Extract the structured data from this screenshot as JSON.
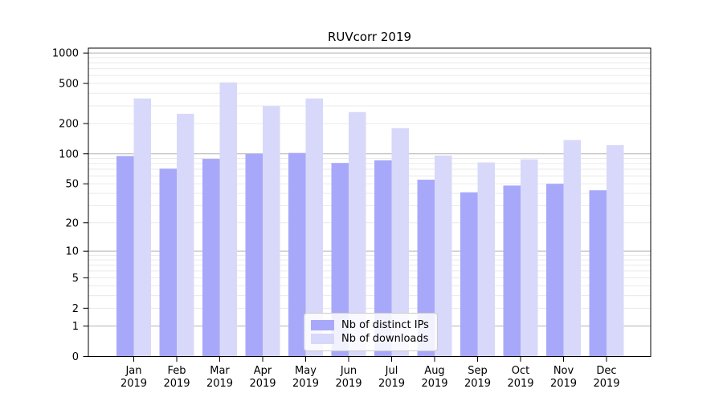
{
  "chart_data": {
    "type": "bar",
    "title": "RUVcorr 2019",
    "categories": [
      "Jan",
      "Feb",
      "Mar",
      "Apr",
      "May",
      "Jun",
      "Jul",
      "Aug",
      "Sep",
      "Oct",
      "Nov",
      "Dec"
    ],
    "category_year": "2019",
    "series": [
      {
        "name": "Nb of distinct IPs",
        "color": "#a8a8fa",
        "values": [
          95,
          71,
          89,
          100,
          102,
          81,
          86,
          55,
          41,
          48,
          50,
          43
        ]
      },
      {
        "name": "Nb of downloads",
        "color": "#d8d8fa",
        "values": [
          355,
          250,
          512,
          298,
          355,
          260,
          180,
          96,
          82,
          88,
          137,
          122
        ]
      }
    ],
    "yticks": [
      1000,
      500,
      200,
      100,
      50,
      20,
      10,
      5,
      2,
      1,
      0
    ],
    "ylim": [
      0,
      1120
    ],
    "yscale": "log1p",
    "xlabel": "",
    "ylabel": "",
    "grid": "on",
    "legend_position": "lower-center",
    "major_grid_color": "#b3b3b3",
    "minor_grid_color": "#eaeaea"
  }
}
